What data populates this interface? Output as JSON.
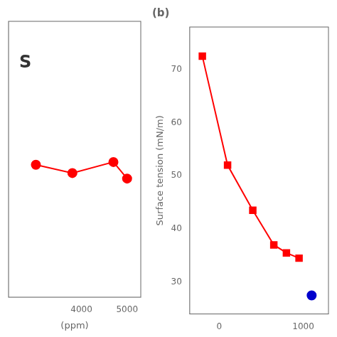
{
  "chart_data": [
    {
      "type": "line",
      "annotation": "S",
      "x_label": "(ppm)",
      "xlim": [
        2400,
        5300
      ],
      "xticks": [
        4000,
        5000
      ],
      "ylim": [
        28,
        38
      ],
      "tick_labels": "x",
      "grid": false,
      "series": [
        {
          "type": "line",
          "color": "#ff0000",
          "marker": "circle",
          "line_style": "solid",
          "x": [
            3000,
            3800,
            4700,
            5000
          ],
          "values": [
            32.8,
            32.5,
            32.9,
            32.3
          ]
        }
      ]
    },
    {
      "type": "line",
      "title": "(b)",
      "y_label": "Surface tension (mN/m)",
      "xlim": [
        -350,
        1300
      ],
      "xticks": [
        0,
        1000
      ],
      "ylim": [
        24,
        78
      ],
      "yticks": [
        30,
        40,
        50,
        60,
        70
      ],
      "grid": false,
      "series": [
        {
          "type": "line",
          "color": "#ff0000",
          "marker": "square",
          "line_style": "solid",
          "x": [
            -200,
            100,
            400,
            650,
            800,
            950
          ],
          "values": [
            72.5,
            52.0,
            43.5,
            37.0,
            35.5,
            34.5
          ]
        },
        {
          "type": "scatter",
          "color": "#0000cc",
          "marker": "circle",
          "x": [
            1100
          ],
          "values": [
            27.5
          ]
        }
      ]
    }
  ]
}
